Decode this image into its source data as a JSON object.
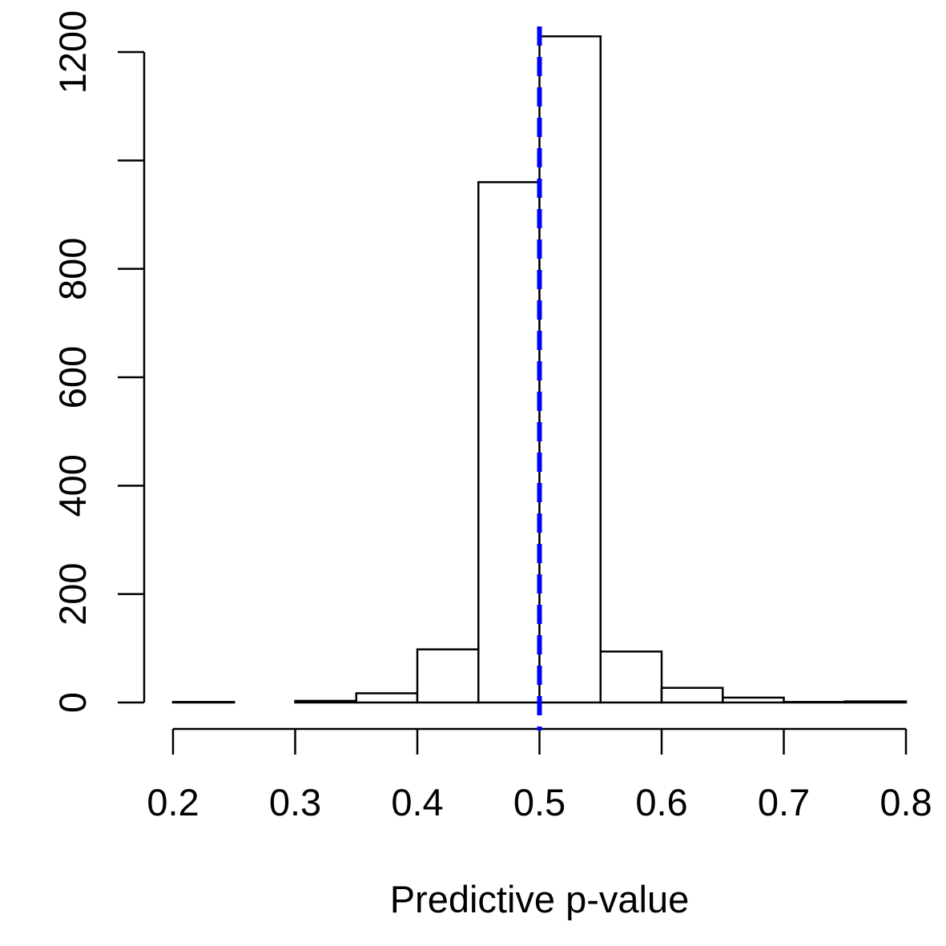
{
  "chart_data": {
    "type": "bar",
    "subtype": "histogram",
    "title": "",
    "xlabel": "Predictive p-value",
    "ylabel": "",
    "bin_edges": [
      0.2,
      0.25,
      0.3,
      0.35,
      0.4,
      0.45,
      0.5,
      0.55,
      0.6,
      0.65,
      0.7,
      0.75,
      0.8
    ],
    "values": [
      1,
      0,
      3,
      17,
      98,
      960,
      1229,
      94,
      27,
      9,
      1,
      2
    ],
    "xlim": [
      0.2,
      0.8
    ],
    "ylim": [
      0,
      1200
    ],
    "x_ticks": [
      "0.2",
      "0.3",
      "0.4",
      "0.5",
      "0.6",
      "0.7",
      "0.8"
    ],
    "y_ticks": [
      "0",
      "200",
      "400",
      "600",
      "800",
      "1200"
    ],
    "y_tick_marks": [
      0,
      200,
      400,
      600,
      800,
      1000,
      1200
    ],
    "reference_line": {
      "x": 0.5,
      "style": "dashed",
      "color": "#0000ff"
    },
    "bar_fill": "#ffffff",
    "bar_stroke": "#000000",
    "grid": false,
    "legend": "none"
  }
}
